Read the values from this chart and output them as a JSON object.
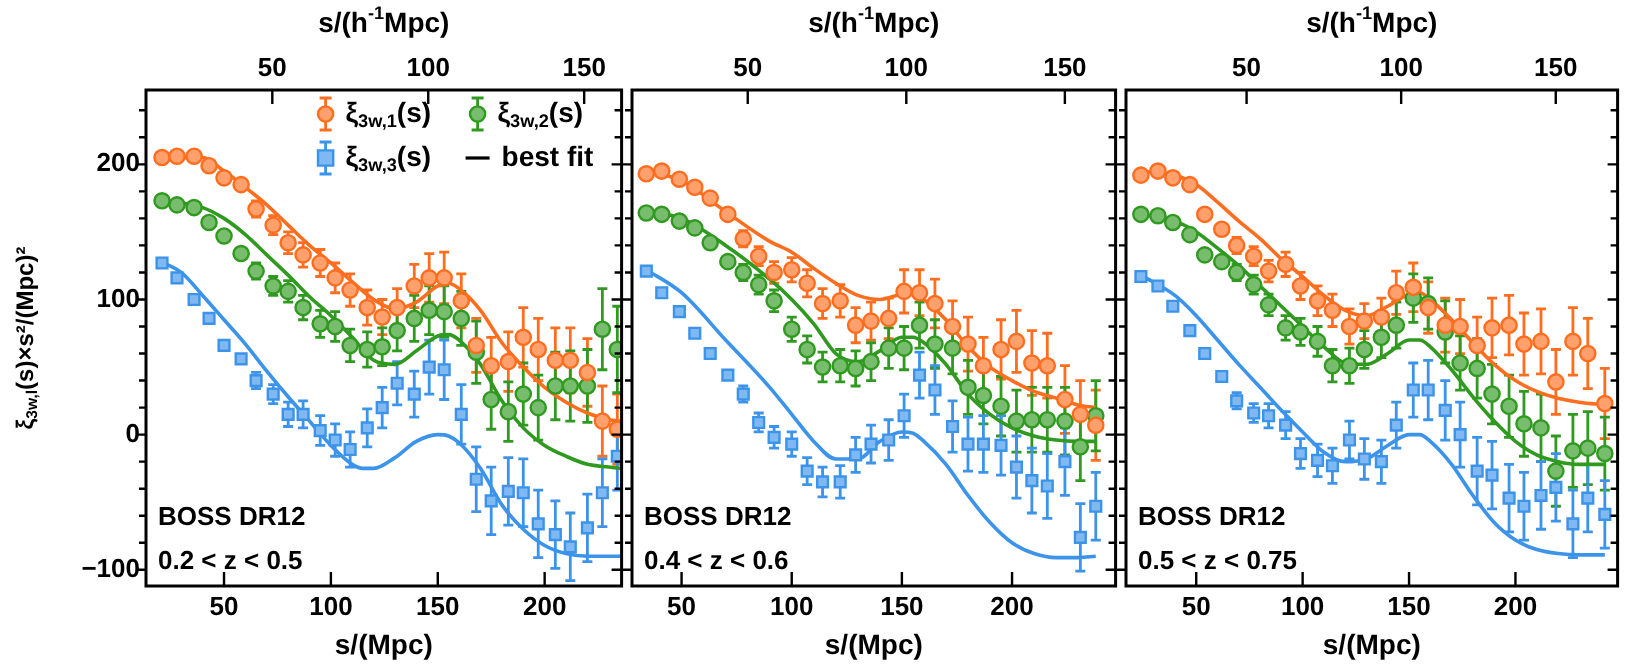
{
  "chart_data": [
    {
      "type": "scatter",
      "xlabel": "s/(Mpc)",
      "x2label": "s/(h$^{-1}$Mpc)",
      "ylabel": "ξ$_{3w,l}$(s)×s²/(Mpc)²",
      "xlim": [
        13.5,
        236
      ],
      "xticks": [
        50,
        100,
        150,
        200
      ],
      "x2lim": [
        9.5,
        162
      ],
      "x2ticks": [
        50,
        100,
        150
      ],
      "ylim": [
        -112,
        255
      ],
      "yticks": [
        {
          "value": -100,
          "label": "−100"
        },
        {
          "value": -80,
          "label": null
        },
        {
          "value": -60,
          "label": null
        },
        {
          "value": -40,
          "label": null
        },
        {
          "value": -20,
          "label": null
        },
        0,
        {
          "value": 20,
          "label": null
        },
        {
          "value": 40,
          "label": null
        },
        {
          "value": 60,
          "label": null
        },
        {
          "value": 80,
          "label": null
        },
        100,
        {
          "value": 120,
          "label": null
        },
        {
          "value": 140,
          "label": null
        },
        {
          "value": 160,
          "label": null
        },
        {
          "value": 180,
          "label": null
        },
        200,
        {
          "value": 220,
          "label": null
        },
        {
          "value": 240,
          "label": null
        }
      ],
      "legend": "top right",
      "annotations": [
        "BOSS DR12",
        "0.2 < z < 0.5",
        "best fit"
      ],
      "x": [
        21,
        28,
        36,
        43,
        50,
        58,
        65,
        73,
        80,
        87,
        95,
        102,
        109,
        117,
        124,
        131,
        139,
        146,
        153,
        161,
        168,
        175,
        183,
        190,
        197,
        205,
        212,
        220,
        227,
        234
      ],
      "series": [
        {
          "name": "ξ$_{3w,1}$(s)",
          "color": "#ff6d1f",
          "marker": "circle",
          "values": [
            205,
            206,
            206,
            199,
            190,
            185,
            167,
            155,
            142,
            133,
            127,
            116,
            107,
            94,
            87,
            94,
            110,
            116,
            116,
            99,
            66,
            51,
            54,
            72,
            63,
            55,
            55,
            46,
            10,
            4
          ],
          "errors": [
            null,
            null,
            null,
            null,
            null,
            null,
            6,
            7,
            8,
            9,
            10,
            11,
            12,
            13,
            13,
            14,
            16,
            18,
            19,
            20,
            20,
            21,
            22,
            22,
            23,
            24,
            24,
            25,
            26,
            26
          ]
        },
        {
          "name": "ξ$_{3w,2}$(s)",
          "color": "#2f9a1f",
          "marker": "circle",
          "values": [
            173,
            170,
            168,
            157,
            147,
            134,
            121,
            110,
            106,
            94,
            82,
            80,
            66,
            63,
            65,
            77,
            86,
            92,
            91,
            86,
            61,
            26,
            17,
            30,
            20,
            36,
            36,
            36,
            78,
            63
          ],
          "errors": [
            null,
            null,
            null,
            null,
            null,
            null,
            6,
            7,
            8,
            9,
            10,
            11,
            12,
            13,
            14,
            15,
            17,
            18,
            19,
            20,
            23,
            22,
            22,
            23,
            24,
            25,
            26,
            27,
            30,
            32
          ]
        },
        {
          "name": "ξ$_{3w,3}$(s)",
          "color": "#3b93ea",
          "marker": "square",
          "values": [
            127,
            116,
            100,
            86,
            66,
            56,
            40,
            30,
            15,
            15,
            3,
            -4,
            -11,
            5,
            20,
            38,
            30,
            50,
            48,
            15,
            -33,
            -49,
            -42,
            -43,
            -66,
            -74,
            -83,
            -69,
            -43,
            -16
          ],
          "errors": [
            null,
            null,
            null,
            null,
            null,
            null,
            6,
            7,
            9,
            10,
            11,
            12,
            13,
            14,
            15,
            16,
            17,
            20,
            22,
            22,
            24,
            25,
            25,
            25,
            25,
            25,
            25,
            25,
            25,
            25
          ]
        },
        {
          "type": "line",
          "color": "#ff6d1f",
          "x": [
            22,
            40,
            50,
            60,
            70,
            80,
            90,
            100,
            110,
            120,
            130,
            140,
            150,
            155,
            160,
            170,
            180,
            190,
            200,
            210,
            220,
            230,
            236
          ],
          "values": [
            205,
            205,
            195,
            183,
            170,
            155,
            140,
            127,
            113,
            100,
            93,
            98,
            110,
            112,
            108,
            92,
            68,
            50,
            35,
            24,
            16,
            11,
            10
          ]
        },
        {
          "type": "line",
          "color": "#2f9a1f",
          "x": [
            22,
            40,
            50,
            60,
            70,
            80,
            90,
            100,
            110,
            120,
            130,
            140,
            150,
            155,
            160,
            170,
            180,
            190,
            200,
            210,
            220,
            230,
            236
          ],
          "values": [
            173,
            168,
            160,
            148,
            133,
            118,
            102,
            88,
            72,
            55,
            52,
            62,
            73,
            74,
            70,
            52,
            25,
            5,
            -8,
            -16,
            -22,
            -24,
            -25
          ]
        },
        {
          "type": "line",
          "color": "#3b93ea",
          "x": [
            22,
            30,
            40,
            50,
            60,
            70,
            80,
            90,
            100,
            110,
            115,
            120,
            130,
            140,
            150,
            155,
            160,
            170,
            180,
            190,
            200,
            210,
            220,
            230,
            236
          ],
          "values": [
            127,
            120,
            103,
            85,
            67,
            47,
            28,
            10,
            -8,
            -22,
            -25,
            -25,
            -17,
            -5,
            0,
            -1,
            -6,
            -25,
            -52,
            -70,
            -82,
            -88,
            -90,
            -90,
            -90
          ]
        }
      ]
    },
    {
      "type": "scatter",
      "xlabel": "s/(Mpc)",
      "x2label": "s/(h$^{-1}$Mpc)",
      "xlim": [
        27.5,
        247
      ],
      "xticks": [
        50,
        100,
        150,
        200
      ],
      "x2lim": [
        13.5,
        166
      ],
      "x2ticks": [
        50,
        100,
        150
      ],
      "ylim": [
        -112,
        255
      ],
      "yticks": [
        -100,
        {
          "value": -80,
          "label": null
        },
        {
          "value": -60,
          "label": null
        },
        {
          "value": -40,
          "label": null
        },
        {
          "value": -20,
          "label": null
        },
        0,
        {
          "value": 20,
          "label": null
        },
        {
          "value": 40,
          "label": null
        },
        {
          "value": 60,
          "label": null
        },
        {
          "value": 80,
          "label": null
        },
        100,
        {
          "value": 120,
          "label": null
        },
        {
          "value": 140,
          "label": null
        },
        {
          "value": 160,
          "label": null
        },
        {
          "value": 180,
          "label": null
        },
        200,
        {
          "value": 220,
          "label": null
        },
        {
          "value": 240,
          "label": null
        }
      ],
      "tick_labels": "x",
      "annotations": [
        "BOSS DR12",
        "0.4 < z < 0.6"
      ],
      "x": [
        34,
        41,
        49,
        56,
        63,
        71,
        78,
        85,
        92,
        100,
        107,
        114,
        122,
        129,
        136,
        144,
        151,
        158,
        165,
        173,
        180,
        187,
        195,
        202,
        209,
        216,
        224,
        231,
        238
      ],
      "series": [
        {
          "color": "#ff6d1f",
          "marker": "circle",
          "values": [
            193,
            195,
            189,
            183,
            175,
            163,
            145,
            132,
            120,
            122,
            112,
            97,
            99,
            81,
            84,
            86,
            106,
            105,
            97,
            80,
            67,
            51,
            63,
            69,
            53,
            51,
            26,
            15,
            7
          ],
          "errors": [
            null,
            null,
            null,
            null,
            null,
            null,
            6,
            7,
            8,
            9,
            10,
            11,
            12,
            13,
            14,
            15,
            16,
            17,
            18,
            19,
            20,
            21,
            22,
            23,
            24,
            24,
            25,
            25,
            26
          ]
        },
        {
          "color": "#2f9a1f",
          "marker": "circle",
          "values": [
            164,
            163,
            158,
            153,
            142,
            128,
            120,
            111,
            99,
            78,
            63,
            50,
            51,
            49,
            54,
            64,
            64,
            81,
            67,
            64,
            35,
            29,
            21,
            10,
            11,
            11,
            10,
            -9,
            14
          ],
          "errors": [
            null,
            null,
            null,
            null,
            null,
            null,
            6,
            7,
            8,
            9,
            10,
            11,
            12,
            13,
            14,
            15,
            16,
            17,
            18,
            19,
            20,
            21,
            22,
            23,
            24,
            24,
            25,
            25,
            26
          ]
        },
        {
          "color": "#3b93ea",
          "marker": "square",
          "values": [
            121,
            105,
            91,
            75,
            60,
            44,
            30,
            9,
            -2,
            -7,
            -27,
            -35,
            -35,
            -15,
            -7,
            -4,
            14,
            44,
            33,
            6,
            -7,
            -7,
            -8,
            -24,
            -34,
            -38,
            -20,
            -76,
            -53
          ],
          "errors": [
            null,
            null,
            null,
            null,
            null,
            null,
            6,
            7,
            8,
            9,
            10,
            11,
            12,
            13,
            14,
            15,
            16,
            17,
            18,
            19,
            20,
            21,
            22,
            23,
            24,
            24,
            25,
            25,
            25
          ]
        },
        {
          "type": "line",
          "color": "#ff6d1f",
          "x": [
            34,
            50,
            70,
            90,
            100,
            110,
            120,
            130,
            140,
            150,
            155,
            160,
            170,
            180,
            190,
            200,
            210,
            220,
            230,
            238
          ],
          "values": [
            195,
            188,
            165,
            143,
            135,
            123,
            112,
            103,
            100,
            104,
            105,
            100,
            85,
            65,
            50,
            40,
            32,
            27,
            22,
            20
          ]
        },
        {
          "type": "line",
          "color": "#2f9a1f",
          "x": [
            34,
            50,
            70,
            90,
            100,
            110,
            120,
            130,
            140,
            150,
            155,
            160,
            170,
            180,
            190,
            200,
            210,
            220,
            230,
            238
          ],
          "values": [
            165,
            160,
            140,
            115,
            100,
            82,
            60,
            54,
            62,
            72,
            72,
            68,
            52,
            30,
            15,
            5,
            -1,
            -4,
            -5,
            -5
          ]
        },
        {
          "type": "line",
          "color": "#3b93ea",
          "x": [
            34,
            50,
            70,
            90,
            100,
            110,
            120,
            130,
            140,
            150,
            155,
            160,
            170,
            180,
            190,
            200,
            210,
            220,
            230,
            238
          ],
          "values": [
            122,
            105,
            70,
            35,
            15,
            -5,
            -18,
            -18,
            -5,
            2,
            1,
            -5,
            -22,
            -45,
            -65,
            -80,
            -88,
            -91,
            -91,
            -90
          ]
        }
      ]
    },
    {
      "type": "scatter",
      "xlabel": "s/(Mpc)",
      "x2label": "s/(h$^{-1}$Mpc)",
      "xlim": [
        17,
        248
      ],
      "xticks": [
        50,
        100,
        150,
        200
      ],
      "x2lim": [
        11,
        170
      ],
      "x2ticks": [
        50,
        100,
        150
      ],
      "ylim": [
        -112,
        255
      ],
      "yticks": [
        -100,
        {
          "value": -80,
          "label": null
        },
        {
          "value": -60,
          "label": null
        },
        {
          "value": -40,
          "label": null
        },
        {
          "value": -20,
          "label": null
        },
        0,
        {
          "value": 20,
          "label": null
        },
        {
          "value": 40,
          "label": null
        },
        {
          "value": 60,
          "label": null
        },
        {
          "value": 80,
          "label": null
        },
        100,
        {
          "value": 120,
          "label": null
        },
        {
          "value": 140,
          "label": null
        },
        {
          "value": 160,
          "label": null
        },
        {
          "value": 180,
          "label": null
        },
        200,
        {
          "value": 220,
          "label": null
        },
        {
          "value": 240,
          "label": null
        }
      ],
      "tick_labels": "x",
      "annotations": [
        "BOSS DR12",
        "0.5 < z < 0.75"
      ],
      "x": [
        24,
        32,
        39,
        47,
        54,
        62,
        69,
        77,
        84,
        92,
        99,
        107,
        114,
        122,
        129,
        137,
        144,
        152,
        159,
        167,
        174,
        182,
        189,
        197,
        204,
        212,
        219,
        227,
        234,
        242
      ],
      "series": [
        {
          "color": "#ff6d1f",
          "marker": "circle",
          "values": [
            192,
            195,
            190,
            185,
            163,
            152,
            140,
            132,
            121,
            126,
            110,
            99,
            92,
            80,
            84,
            87,
            105,
            109,
            94,
            81,
            80,
            66,
            79,
            81,
            67,
            69,
            39,
            69,
            60,
            23
          ],
          "errors": [
            null,
            null,
            null,
            null,
            null,
            null,
            6,
            7,
            8,
            9,
            10,
            11,
            12,
            13,
            13,
            14,
            16,
            18,
            19,
            20,
            20,
            21,
            22,
            22,
            23,
            24,
            24,
            25,
            26,
            26
          ]
        },
        {
          "color": "#2f9a1f",
          "marker": "circle",
          "values": [
            163,
            162,
            157,
            148,
            133,
            128,
            120,
            111,
            96,
            79,
            76,
            69,
            51,
            51,
            63,
            72,
            81,
            101,
            97,
            76,
            53,
            49,
            30,
            21,
            8,
            5,
            -27,
            -12,
            -10,
            -14
          ],
          "errors": [
            null,
            null,
            null,
            null,
            null,
            null,
            6,
            7,
            8,
            9,
            10,
            11,
            12,
            13,
            14,
            15,
            17,
            18,
            19,
            23,
            20,
            22,
            22,
            23,
            24,
            25,
            26,
            27,
            27,
            27
          ]
        },
        {
          "color": "#3b93ea",
          "marker": "square",
          "values": [
            117,
            110,
            95,
            77,
            60,
            43,
            25,
            16,
            14,
            7,
            -14,
            -19,
            -23,
            -4,
            -18,
            -20,
            7,
            33,
            33,
            18,
            0,
            -27,
            -30,
            -47,
            -53,
            -45,
            -39,
            -66,
            -47,
            -59
          ],
          "errors": [
            null,
            null,
            null,
            null,
            null,
            null,
            6,
            7,
            9,
            10,
            11,
            12,
            13,
            14,
            15,
            16,
            17,
            20,
            22,
            22,
            24,
            25,
            25,
            25,
            25,
            25,
            25,
            25,
            25,
            25
          ]
        },
        {
          "type": "line",
          "color": "#ff6d1f",
          "x": [
            24,
            40,
            50,
            60,
            70,
            80,
            90,
            100,
            110,
            120,
            130,
            140,
            150,
            155,
            160,
            170,
            180,
            190,
            200,
            210,
            220,
            230,
            242
          ],
          "values": [
            195,
            192,
            185,
            172,
            158,
            145,
            130,
            117,
            103,
            92,
            88,
            95,
            104,
            105,
            100,
            85,
            68,
            52,
            40,
            32,
            27,
            24,
            22
          ]
        },
        {
          "type": "line",
          "color": "#2f9a1f",
          "x": [
            24,
            40,
            50,
            60,
            70,
            80,
            90,
            100,
            110,
            120,
            130,
            140,
            150,
            155,
            160,
            170,
            180,
            190,
            200,
            210,
            220,
            230,
            242
          ],
          "values": [
            163,
            158,
            150,
            138,
            125,
            110,
            95,
            80,
            65,
            53,
            52,
            60,
            70,
            70,
            65,
            48,
            28,
            10,
            -5,
            -15,
            -20,
            -22,
            -22
          ]
        },
        {
          "type": "line",
          "color": "#3b93ea",
          "x": [
            24,
            40,
            50,
            60,
            70,
            80,
            90,
            100,
            110,
            120,
            130,
            140,
            150,
            155,
            160,
            170,
            180,
            190,
            200,
            210,
            220,
            230,
            242
          ],
          "values": [
            118,
            103,
            88,
            70,
            52,
            35,
            18,
            2,
            -13,
            -20,
            -18,
            -8,
            0,
            0,
            -5,
            -22,
            -45,
            -65,
            -78,
            -85,
            -88,
            -89,
            -89
          ]
        }
      ]
    }
  ]
}
